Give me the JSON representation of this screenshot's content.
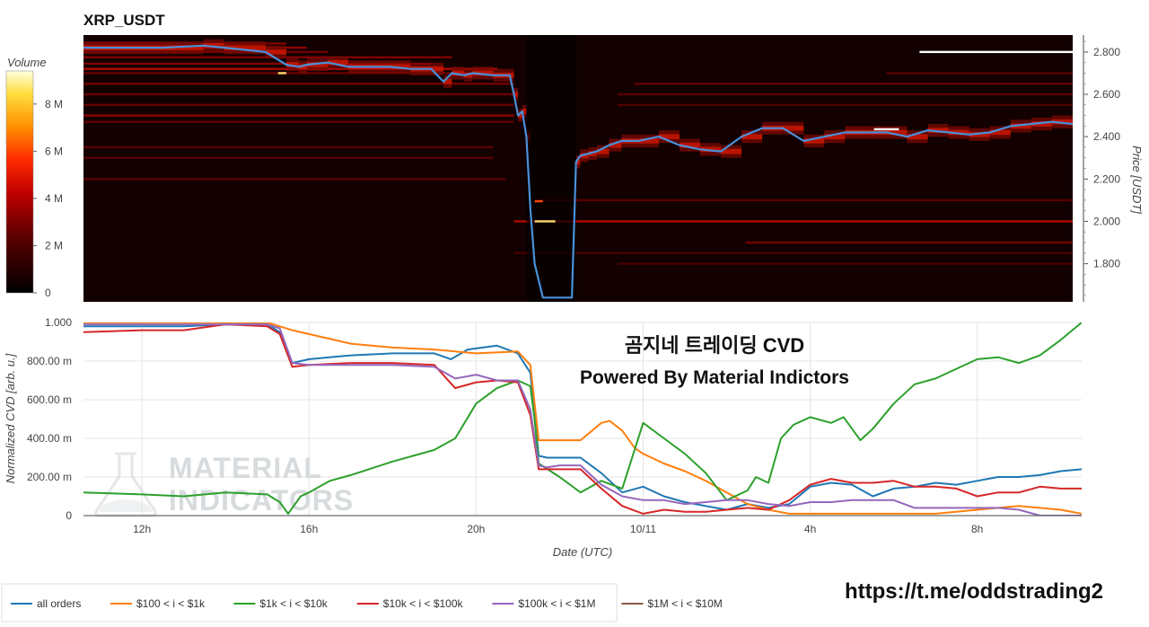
{
  "chart_data": [
    {
      "type": "heatmap",
      "title": "XRP_USDT",
      "colorbar_title": "Volume",
      "colorbar_ticks": [
        "0",
        "2 M",
        "4 M",
        "6 M",
        "8 M"
      ],
      "colorbar_values": [
        0,
        2000000,
        4000000,
        6000000,
        8000000
      ],
      "colorbar_max": 9400000,
      "ylabel": "Price [USDT]",
      "ylim": [
        1.62,
        2.88
      ],
      "y_ticks": [
        "1.800",
        "2.000",
        "2.200",
        "2.400",
        "2.600",
        "2.800"
      ],
      "y_tick_values": [
        1.8,
        2.0,
        2.2,
        2.4,
        2.6,
        2.8
      ],
      "x_range": [
        10.6,
        34.5
      ],
      "order_book_levels": [
        {
          "price": 2.84,
          "from": 10.6,
          "to": 15.5,
          "intensity": 0.5
        },
        {
          "price": 2.82,
          "from": 10.6,
          "to": 16.0,
          "intensity": 0.55
        },
        {
          "price": 2.8,
          "from": 10.6,
          "to": 16.5,
          "intensity": 0.45
        },
        {
          "price": 2.775,
          "from": 10.6,
          "to": 19.5,
          "intensity": 0.5
        },
        {
          "price": 2.745,
          "from": 10.6,
          "to": 19.0,
          "intensity": 0.5
        },
        {
          "price": 2.72,
          "from": 10.6,
          "to": 20.6,
          "intensity": 0.7
        },
        {
          "price": 2.7,
          "from": 10.6,
          "to": 20.5,
          "intensity": 0.4
        },
        {
          "price": 2.65,
          "from": 10.6,
          "to": 21.0,
          "intensity": 0.45
        },
        {
          "price": 2.6,
          "from": 10.6,
          "to": 21.0,
          "intensity": 0.4
        },
        {
          "price": 2.55,
          "from": 10.6,
          "to": 21.0,
          "intensity": 0.35
        },
        {
          "price": 2.5,
          "from": 10.6,
          "to": 21.0,
          "intensity": 0.55
        },
        {
          "price": 2.47,
          "from": 10.6,
          "to": 21.0,
          "intensity": 0.35
        },
        {
          "price": 2.35,
          "from": 10.6,
          "to": 20.5,
          "intensity": 0.3
        },
        {
          "price": 2.3,
          "from": 10.6,
          "to": 20.5,
          "intensity": 0.3
        },
        {
          "price": 2.2,
          "from": 10.6,
          "to": 20.8,
          "intensity": 0.3
        },
        {
          "price": 2.0,
          "from": 21.0,
          "to": 34.5,
          "intensity": 0.7
        },
        {
          "price": 1.9,
          "from": 26.6,
          "to": 34.5,
          "intensity": 0.45
        },
        {
          "price": 2.1,
          "from": 21.6,
          "to": 34.5,
          "intensity": 0.3
        },
        {
          "price": 2.65,
          "from": 23.9,
          "to": 34.5,
          "intensity": 0.35
        },
        {
          "price": 2.6,
          "from": 23.5,
          "to": 34.5,
          "intensity": 0.3
        },
        {
          "price": 2.55,
          "from": 23.5,
          "to": 34.5,
          "intensity": 0.25
        },
        {
          "price": 2.7,
          "from": 30.0,
          "to": 34.5,
          "intensity": 0.3
        },
        {
          "price": 1.85,
          "from": 21.0,
          "to": 34.5,
          "intensity": 0.2
        },
        {
          "price": 1.8,
          "from": 23.5,
          "to": 34.5,
          "intensity": 0.2
        }
      ],
      "order_book_walls": [
        {
          "price": 2.8,
          "from": 30.8,
          "to": 34.5,
          "intensity": 1.0
        },
        {
          "price": 2.435,
          "from": 29.7,
          "to": 30.3,
          "intensity": 1.0
        },
        {
          "price": 2.0,
          "from": 21.5,
          "to": 22.0,
          "intensity": 0.95
        },
        {
          "price": 2.095,
          "from": 21.5,
          "to": 21.7,
          "intensity": 0.8
        },
        {
          "price": 2.7,
          "from": 15.3,
          "to": 15.5,
          "intensity": 0.95
        }
      ],
      "series": [
        {
          "name": "Price",
          "color": "#4a90d9",
          "x": [
            10.6,
            11.5,
            12.5,
            13.5,
            14.0,
            15.0,
            15.5,
            15.8,
            16.0,
            16.5,
            17.0,
            17.5,
            18.0,
            18.5,
            19.0,
            19.3,
            19.5,
            19.8,
            20.0,
            20.5,
            20.9,
            21.0,
            21.1,
            21.2,
            21.3,
            21.4,
            21.5,
            21.7,
            22.0,
            22.3,
            22.4,
            22.5,
            22.6,
            22.8,
            23.0,
            23.3,
            23.6,
            24.0,
            24.5,
            25.0,
            25.5,
            26.0,
            26.5,
            27.0,
            27.5,
            28.0,
            28.5,
            29.0,
            29.5,
            30.0,
            30.5,
            31.0,
            31.5,
            32.0,
            32.5,
            33.0,
            33.5,
            34.0,
            34.5
          ],
          "y": [
            2.82,
            2.82,
            2.82,
            2.83,
            2.82,
            2.8,
            2.74,
            2.73,
            2.74,
            2.75,
            2.73,
            2.73,
            2.73,
            2.72,
            2.72,
            2.66,
            2.7,
            2.69,
            2.7,
            2.69,
            2.69,
            2.6,
            2.5,
            2.52,
            2.4,
            2.05,
            1.8,
            1.64,
            1.64,
            1.64,
            1.64,
            2.28,
            2.31,
            2.32,
            2.33,
            2.36,
            2.38,
            2.38,
            2.4,
            2.36,
            2.34,
            2.33,
            2.4,
            2.44,
            2.44,
            2.38,
            2.4,
            2.42,
            2.42,
            2.42,
            2.4,
            2.43,
            2.42,
            2.41,
            2.42,
            2.45,
            2.46,
            2.47,
            2.46
          ]
        }
      ]
    },
    {
      "type": "line",
      "xlabel": "Date (UTC)",
      "ylabel": "Normalized CVD [arb. u.]",
      "ylim": [
        0,
        1.0
      ],
      "xlim": [
        10.6,
        34.5
      ],
      "x_ticks": [
        "12h",
        "16h",
        "20h",
        "10/11",
        "4h",
        "8h"
      ],
      "x_tick_values": [
        12,
        16,
        20,
        24,
        28,
        32
      ],
      "y_ticks": [
        "0",
        "200.00 m",
        "400.00 m",
        "600.00 m",
        "800.00 m",
        "1.000"
      ],
      "y_tick_values": [
        0,
        0.2,
        0.4,
        0.6,
        0.8,
        1.0
      ],
      "annotations": [
        "곰지네 트레이딩 CVD",
        "Powered By Material Indictors"
      ],
      "watermark": [
        "MATERIAL",
        "INDICATORS"
      ],
      "series": [
        {
          "name": "all orders",
          "color": "#1f77b4",
          "x": [
            10.6,
            12.0,
            13.0,
            14.0,
            15.0,
            15.3,
            15.6,
            16.0,
            17.0,
            18.0,
            19.0,
            19.4,
            19.8,
            20.5,
            21.0,
            21.3,
            21.5,
            21.7,
            22.0,
            22.5,
            23.0,
            23.5,
            24.0,
            24.5,
            25.0,
            25.5,
            26.0,
            26.5,
            27.0,
            27.5,
            28.0,
            28.5,
            29.0,
            29.5,
            30.0,
            30.5,
            31.0,
            31.5,
            32.0,
            32.5,
            33.0,
            33.5,
            34.0,
            34.5
          ],
          "y": [
            0.98,
            0.98,
            0.98,
            0.99,
            0.99,
            0.95,
            0.79,
            0.81,
            0.83,
            0.84,
            0.84,
            0.81,
            0.86,
            0.88,
            0.84,
            0.74,
            0.31,
            0.3,
            0.3,
            0.3,
            0.22,
            0.12,
            0.15,
            0.1,
            0.07,
            0.05,
            0.03,
            0.06,
            0.04,
            0.06,
            0.15,
            0.17,
            0.16,
            0.1,
            0.14,
            0.15,
            0.17,
            0.16,
            0.18,
            0.2,
            0.2,
            0.21,
            0.23,
            0.24
          ]
        },
        {
          "name": "$100 < i < $1k",
          "color": "#ff7f0e",
          "x": [
            10.6,
            12.0,
            13.0,
            14.0,
            15.0,
            15.3,
            15.6,
            16.0,
            17.0,
            18.0,
            19.0,
            20.0,
            21.0,
            21.3,
            21.5,
            21.7,
            22.0,
            22.5,
            23.0,
            23.2,
            23.5,
            23.8,
            24.0,
            24.5,
            25.0,
            25.5,
            26.0,
            26.5,
            27.0,
            27.5,
            28.0,
            29.0,
            30.0,
            31.0,
            32.0,
            33.0,
            34.0,
            34.5
          ],
          "y": [
            1.0,
            1.0,
            1.0,
            1.0,
            1.0,
            0.98,
            0.96,
            0.94,
            0.89,
            0.87,
            0.86,
            0.84,
            0.85,
            0.78,
            0.39,
            0.39,
            0.39,
            0.39,
            0.48,
            0.49,
            0.44,
            0.35,
            0.32,
            0.27,
            0.23,
            0.18,
            0.12,
            0.06,
            0.03,
            0.01,
            0.01,
            0.01,
            0.01,
            0.01,
            0.03,
            0.05,
            0.03,
            0.01
          ]
        },
        {
          "name": "$1k < i < $10k",
          "color": "#2ca02c",
          "x": [
            10.6,
            12.0,
            13.0,
            14.0,
            15.0,
            15.3,
            15.5,
            15.8,
            16.0,
            16.5,
            17.0,
            18.0,
            19.0,
            19.5,
            20.0,
            20.5,
            21.0,
            21.3,
            21.4,
            21.5,
            22.0,
            22.5,
            23.0,
            23.5,
            24.0,
            24.5,
            25.0,
            25.5,
            26.0,
            26.5,
            26.7,
            27.0,
            27.3,
            27.6,
            28.0,
            28.5,
            28.8,
            29.2,
            29.5,
            30.0,
            30.5,
            31.0,
            31.5,
            32.0,
            32.5,
            33.0,
            33.5,
            34.0,
            34.5
          ],
          "y": [
            0.12,
            0.11,
            0.1,
            0.12,
            0.11,
            0.07,
            0.01,
            0.1,
            0.12,
            0.18,
            0.21,
            0.28,
            0.34,
            0.4,
            0.58,
            0.66,
            0.7,
            0.67,
            0.5,
            0.27,
            0.2,
            0.12,
            0.18,
            0.14,
            0.48,
            0.4,
            0.32,
            0.22,
            0.08,
            0.13,
            0.2,
            0.17,
            0.4,
            0.47,
            0.51,
            0.48,
            0.51,
            0.39,
            0.45,
            0.58,
            0.68,
            0.71,
            0.76,
            0.81,
            0.82,
            0.79,
            0.83,
            0.91,
            1.0
          ]
        },
        {
          "name": "$10k < i < $100k",
          "color": "#d62728",
          "x": [
            10.6,
            12.0,
            13.0,
            14.0,
            15.0,
            15.3,
            15.6,
            16.0,
            17.0,
            18.0,
            19.0,
            19.5,
            20.0,
            20.5,
            21.0,
            21.3,
            21.5,
            21.7,
            22.0,
            22.5,
            23.0,
            23.5,
            24.0,
            24.5,
            25.0,
            25.5,
            26.0,
            26.5,
            27.0,
            27.5,
            28.0,
            28.5,
            29.0,
            29.5,
            30.0,
            30.5,
            31.0,
            31.5,
            32.0,
            32.5,
            33.0,
            33.5,
            34.0,
            34.5
          ],
          "y": [
            0.95,
            0.96,
            0.96,
            0.99,
            0.98,
            0.94,
            0.77,
            0.78,
            0.79,
            0.79,
            0.78,
            0.66,
            0.69,
            0.7,
            0.69,
            0.52,
            0.24,
            0.24,
            0.24,
            0.24,
            0.14,
            0.05,
            0.01,
            0.03,
            0.02,
            0.02,
            0.03,
            0.04,
            0.03,
            0.08,
            0.16,
            0.19,
            0.17,
            0.17,
            0.18,
            0.15,
            0.15,
            0.14,
            0.1,
            0.12,
            0.12,
            0.15,
            0.14,
            0.14
          ]
        },
        {
          "name": "$100k < i < $1M",
          "color": "#9467bd",
          "x": [
            10.6,
            12.0,
            13.0,
            14.0,
            15.0,
            15.3,
            15.6,
            16.0,
            17.0,
            18.0,
            19.0,
            19.5,
            20.0,
            20.5,
            21.0,
            21.3,
            21.5,
            21.7,
            22.0,
            22.5,
            23.0,
            23.5,
            24.0,
            24.5,
            25.0,
            25.5,
            26.0,
            26.5,
            27.0,
            27.5,
            28.0,
            28.5,
            29.0,
            29.5,
            30.0,
            30.5,
            31.0,
            31.5,
            32.0,
            32.5,
            33.0,
            33.5,
            34.0,
            34.5
          ],
          "y": [
            0.99,
            0.99,
            0.99,
            0.99,
            0.99,
            0.97,
            0.79,
            0.78,
            0.78,
            0.78,
            0.77,
            0.71,
            0.73,
            0.7,
            0.7,
            0.55,
            0.26,
            0.25,
            0.26,
            0.26,
            0.16,
            0.1,
            0.08,
            0.08,
            0.06,
            0.07,
            0.08,
            0.08,
            0.06,
            0.05,
            0.07,
            0.07,
            0.08,
            0.08,
            0.08,
            0.04,
            0.04,
            0.04,
            0.04,
            0.04,
            0.03,
            0.0,
            0.0,
            0.0
          ]
        },
        {
          "name": "$1M < i < $10M",
          "color": "#8c564b",
          "x": [
            10.6,
            34.5
          ],
          "y": [
            null,
            null
          ]
        }
      ]
    }
  ],
  "footer": {
    "url": "https://t.me/oddstrading2"
  }
}
